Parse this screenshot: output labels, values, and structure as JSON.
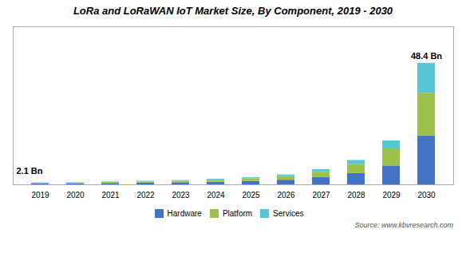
{
  "chart_data": {
    "type": "bar",
    "title": "LoRa and LoRaWAN IoT Market Size, By Component, 2019 - 2030",
    "categories": [
      "2019",
      "2020",
      "2021",
      "2022",
      "2023",
      "2024",
      "2025",
      "2026",
      "2027",
      "2028",
      "2029",
      "2030"
    ],
    "series": [
      {
        "name": "Hardware",
        "color": "#4472c4",
        "values": [
          0.35,
          0.42,
          0.55,
          0.68,
          0.82,
          1.05,
          1.35,
          1.85,
          2.9,
          4.5,
          7.5,
          19.5
        ]
      },
      {
        "name": "Platform",
        "color": "#9dc24b",
        "values": [
          0.28,
          0.33,
          0.4,
          0.5,
          0.62,
          0.8,
          1.0,
          1.4,
          2.1,
          3.6,
          6.8,
          17.0
        ]
      },
      {
        "name": "Services",
        "color": "#57c7d4",
        "values": [
          0.12,
          0.14,
          0.18,
          0.22,
          0.28,
          0.38,
          0.5,
          0.7,
          1.05,
          1.6,
          3.2,
          11.9
        ]
      }
    ],
    "stacked": true,
    "ylim": [
      0,
      62.92
    ],
    "tick_labels": "x",
    "grid": false,
    "legend": "bottom",
    "annotations": [
      "2.1 Bn",
      "48.4 Bn"
    ],
    "caption": "Source:  www.kbvresearch.com"
  }
}
